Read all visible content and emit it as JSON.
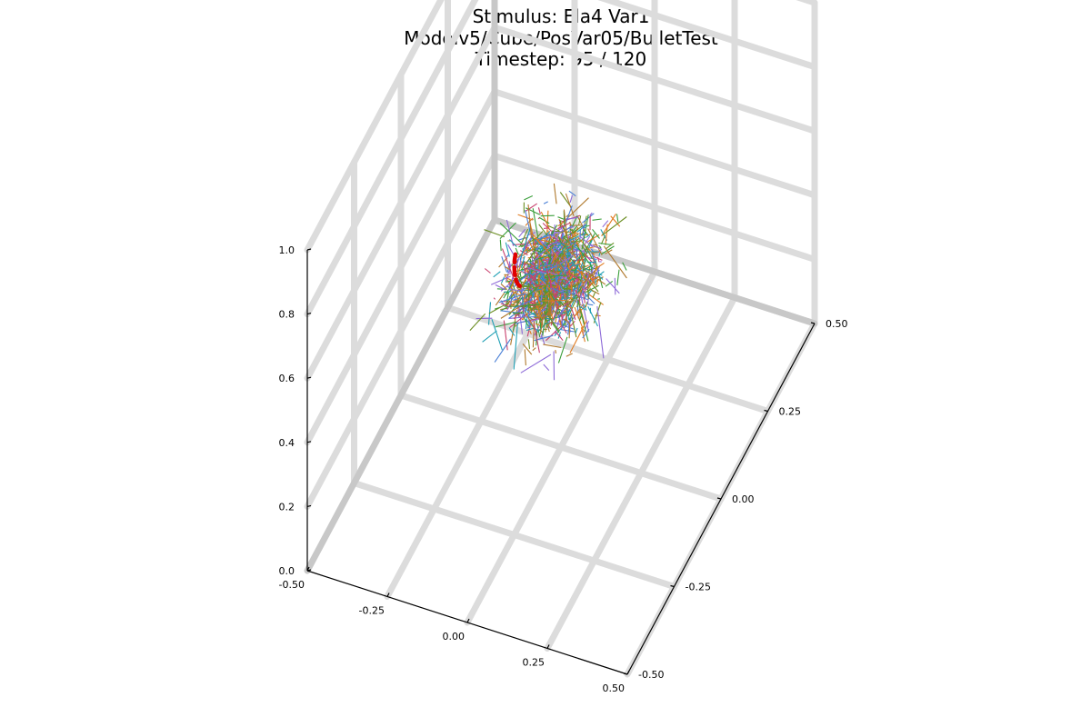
{
  "chart_data": {
    "type": "3d-line",
    "title_lines": [
      "Stimulus: Ela4 Var1",
      "Modelv5/Cube/PosVar05/BulletTest",
      "Timestep: 95 / 120"
    ],
    "timestep": {
      "current": 95,
      "total": 120
    },
    "axes": {
      "x": {
        "range": [
          -0.5,
          0.5
        ],
        "ticks": [
          "-0.50",
          "-0.25",
          "0.00",
          "0.25",
          "0.50"
        ]
      },
      "y": {
        "range": [
          -0.5,
          0.5
        ],
        "ticks": [
          "-0.50",
          "-0.25",
          "0.00",
          "0.25",
          "0.50"
        ]
      },
      "z": {
        "range": [
          0.0,
          1.0
        ],
        "ticks": [
          "0.0",
          "0.2",
          "0.4",
          "0.6",
          "0.8",
          "1.0"
        ]
      }
    },
    "grid": true,
    "legend": "none",
    "colors": {
      "grid": "#dcdcdc",
      "grid_back_corner": "#c8c8c8",
      "axis": "#000000",
      "highlight": "#e00000",
      "series": [
        "#4a7fd6",
        "#e07a1f",
        "#3a9e3a",
        "#c8406e",
        "#8e6bd8",
        "#1f9fb4",
        "#b0792c",
        "#6b8e23"
      ]
    },
    "cluster": {
      "center": [
        -0.08,
        0.1,
        0.4
      ],
      "spread": [
        0.06,
        0.06,
        0.05
      ],
      "segments": 1400
    },
    "highlight_arc": {
      "center": [
        -0.19,
        0.12,
        0.38
      ],
      "radius": 0.045,
      "start_angle_deg": 150,
      "end_angle_deg": 250
    }
  }
}
